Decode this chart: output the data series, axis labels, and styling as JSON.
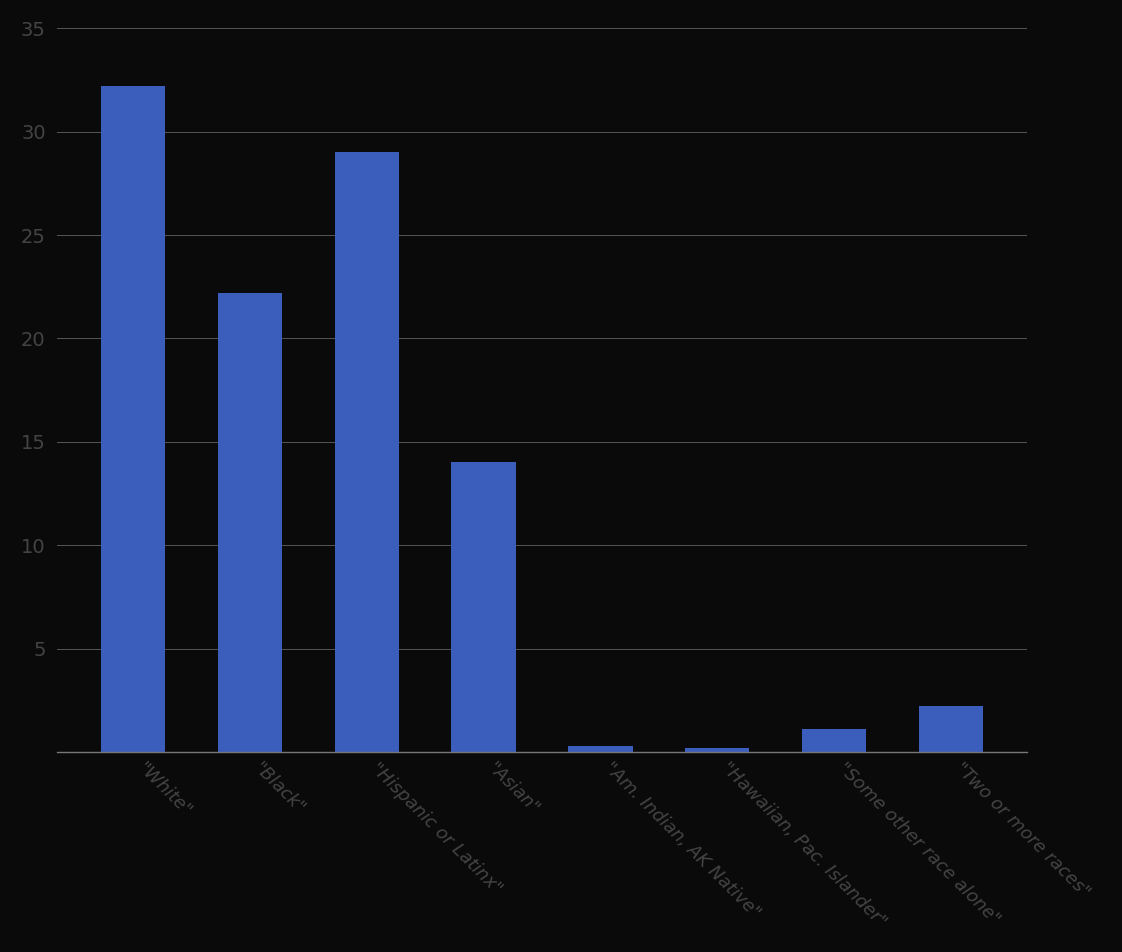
{
  "categories": [
    "\"White\"",
    "\"Black\"",
    "\"Hispanic or Latinx\"",
    "\"Asian\"",
    "\"Am. Indian, AK Native\"",
    "\"Hawaiian, Pac. Islander\"",
    "\"Some other race alone\"",
    "\"Two or more races\""
  ],
  "values": [
    32.2,
    22.2,
    29.0,
    14.0,
    0.3,
    0.2,
    1.1,
    2.2
  ],
  "bar_color": "#3B5EBD",
  "background_color": "#0a0a0a",
  "text_color": "#444444",
  "grid_color": "#555555",
  "ylim": [
    0,
    35
  ],
  "yticks": [
    0,
    5,
    10,
    15,
    20,
    25,
    30,
    35
  ],
  "title": "",
  "xlabel": "",
  "ylabel": ""
}
